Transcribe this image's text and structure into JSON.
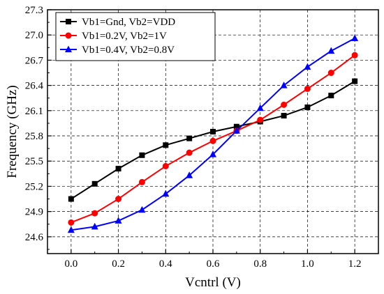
{
  "chart_data": {
    "type": "line",
    "xlabel": "Vcntrl (V)",
    "ylabel": "Frequency (GHz)",
    "xlim": [
      -0.1,
      1.3
    ],
    "ylim": [
      24.4,
      27.3
    ],
    "x_ticks": [
      "0.0",
      "0.2",
      "0.4",
      "0.6",
      "0.8",
      "1.0",
      "1.2"
    ],
    "y_ticks": [
      "24.6",
      "24.9",
      "25.2",
      "25.5",
      "25.8",
      "26.1",
      "26.4",
      "26.7",
      "27.0",
      "27.3"
    ],
    "grid": true,
    "legend_position": "top-left",
    "x": [
      0.0,
      0.1,
      0.2,
      0.3,
      0.4,
      0.5,
      0.6,
      0.7,
      0.8,
      0.9,
      1.0,
      1.1,
      1.2
    ],
    "series": [
      {
        "name": "Vb1=Gnd, Vb2=VDD",
        "color": "#000000",
        "marker": "square",
        "values": [
          25.05,
          25.23,
          25.41,
          25.57,
          25.69,
          25.77,
          25.85,
          25.91,
          25.97,
          26.04,
          26.14,
          26.28,
          26.45
        ]
      },
      {
        "name": "Vb1=0.2V, Vb2=1V",
        "color": "#ff0000",
        "marker": "circle",
        "values": [
          24.77,
          24.88,
          25.05,
          25.25,
          25.44,
          25.6,
          25.74,
          25.86,
          25.99,
          26.17,
          26.36,
          26.55,
          26.76
        ]
      },
      {
        "name": "Vb1=0.4V, Vb2=0.8V",
        "color": "#0000ff",
        "marker": "triangle",
        "values": [
          24.68,
          24.72,
          24.79,
          24.92,
          25.11,
          25.33,
          25.58,
          25.86,
          26.13,
          26.4,
          26.62,
          26.81,
          26.96
        ]
      }
    ]
  }
}
